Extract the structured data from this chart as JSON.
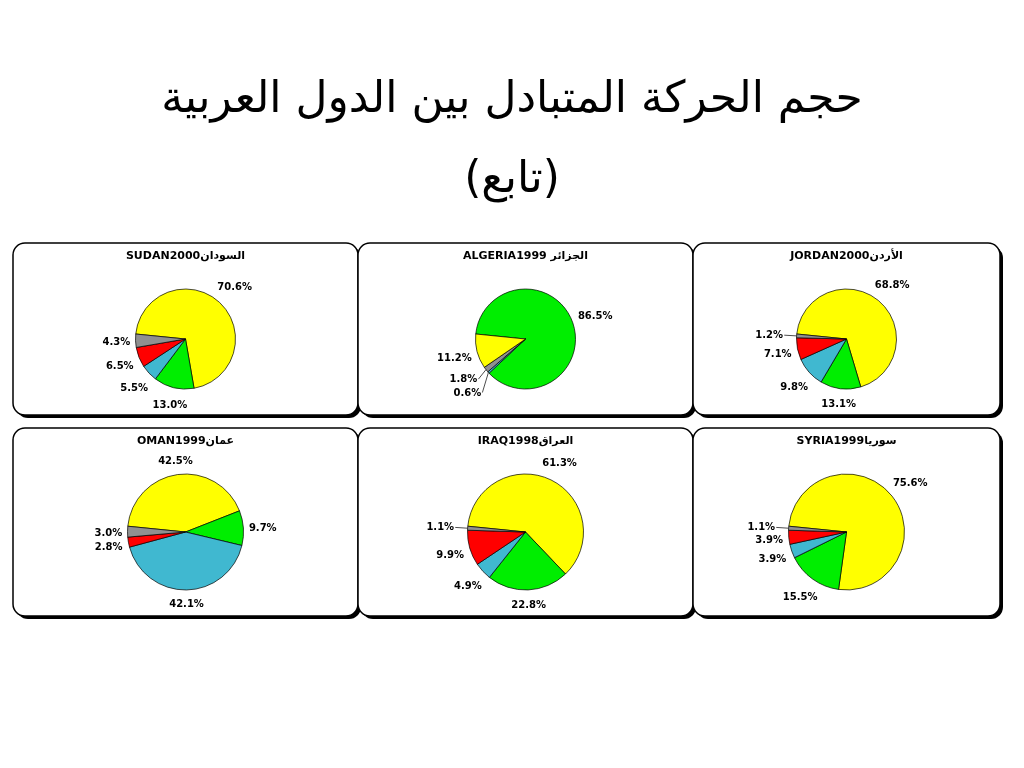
{
  "chart_data": [
    {
      "type": "other",
      "title": "حجم الحركة المتبادل بين الدول العربية",
      "subtitle": "(تابع)"
    },
    {
      "type": "pie",
      "title": "SUDAN2000السودان",
      "categories": [
        null,
        null,
        null,
        null,
        null
      ],
      "values": [
        70.6,
        13.0,
        5.5,
        6.5,
        4.3
      ],
      "value_labels": [
        "70.6%",
        "13.0%",
        "5.5%",
        "6.5%",
        "4.3%"
      ],
      "colors": [
        "#ffff00",
        "#00ee00",
        "#40b8d0",
        "#ff0000",
        "#909090"
      ]
    },
    {
      "type": "pie",
      "title": "ALGERIA1999 الجزائر",
      "categories": [
        null,
        null,
        null,
        null
      ],
      "values": [
        86.5,
        0.6,
        1.8,
        11.2
      ],
      "value_labels": [
        "86.5%",
        "0.6%",
        "1.8%",
        "11.2%"
      ],
      "colors": [
        "#00ee00",
        "#40b8d0",
        "#909090",
        "#ffff00"
      ]
    },
    {
      "type": "pie",
      "title": "JORDAN2000الأردن",
      "categories": [
        null,
        null,
        null,
        null,
        null
      ],
      "values": [
        68.8,
        13.1,
        9.8,
        7.1,
        1.2
      ],
      "value_labels": [
        "68.8%",
        "13.1%",
        "9.8%",
        "7.1%",
        "1.2%"
      ],
      "colors": [
        "#ffff00",
        "#00ee00",
        "#40b8d0",
        "#ff0000",
        "#909090"
      ]
    },
    {
      "type": "pie",
      "title": "OMAN1999عمان",
      "categories": [
        null,
        null,
        null,
        null,
        null
      ],
      "values": [
        42.5,
        9.7,
        42.1,
        2.8,
        3.0
      ],
      "value_labels": [
        "42.5%",
        "9.7%",
        "42.1%",
        "2.8%",
        "3.0%"
      ],
      "colors": [
        "#ffff00",
        "#00ee00",
        "#40b8d0",
        "#ff0000",
        "#909090"
      ]
    },
    {
      "type": "pie",
      "title": "IRAQ1998العراق",
      "categories": [
        null,
        null,
        null,
        null,
        null
      ],
      "values": [
        61.3,
        22.8,
        4.9,
        9.9,
        1.1
      ],
      "value_labels": [
        "61.3%",
        "22.8%",
        "4.9%",
        "9.9%",
        "1.1%"
      ],
      "colors": [
        "#ffff00",
        "#00ee00",
        "#40b8d0",
        "#ff0000",
        "#909090"
      ]
    },
    {
      "type": "pie",
      "title": "SYRIA1999سوريا",
      "categories": [
        null,
        null,
        null,
        null,
        null
      ],
      "values": [
        75.6,
        15.5,
        3.9,
        3.9,
        1.1
      ],
      "value_labels": [
        "75.6%",
        "15.5%",
        "3.9%",
        "3.9%",
        "1.1%"
      ],
      "colors": [
        "#ffff00",
        "#00ee00",
        "#40b8d0",
        "#ff0000",
        "#909090"
      ]
    }
  ]
}
